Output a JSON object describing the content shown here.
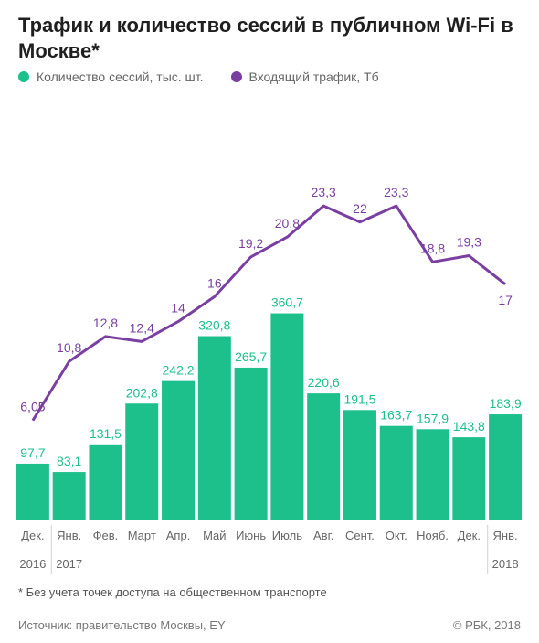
{
  "title": "Трафик и количество сессий в публичном Wi-Fi в Москве*",
  "footnote": "* Без учета точек доступа на общественном транспорте",
  "source": "Источник: правительство Москвы, EY",
  "copyright": "© РБК, 2018",
  "colors": {
    "sessions": "#1dbf8a",
    "traffic": "#7a3fa0"
  },
  "chart_data": {
    "type": "bar",
    "title": "Трафик и количество сессий в публичном Wi-Fi в Москве*",
    "categories": [
      "Дек.",
      "Янв.",
      "Фев.",
      "Март",
      "Апр.",
      "Май",
      "Июнь",
      "Июль",
      "Авг.",
      "Сент.",
      "Окт.",
      "Нояб.",
      "Дек.",
      "Янв."
    ],
    "year_labels": [
      {
        "index": 0,
        "label": "2016"
      },
      {
        "index": 1,
        "label": "2017"
      },
      {
        "index": 13,
        "label": "2018"
      }
    ],
    "series": [
      {
        "name": "Количество сессий, тыс. шт.",
        "type": "bar",
        "values": [
          97.7,
          83.1,
          131.5,
          202.8,
          242.2,
          320.8,
          265.7,
          360.7,
          220.6,
          191.5,
          163.7,
          157.9,
          143.8,
          183.9
        ],
        "labels": [
          "97,7",
          "83,1",
          "131,5",
          "202,8",
          "242,2",
          "320,8",
          "265,7",
          "360,7",
          "220,6",
          "191,5",
          "163,7",
          "157,9",
          "143,8",
          "183,9"
        ]
      },
      {
        "name": "Входящий трафик, Тб",
        "type": "line",
        "values": [
          6.05,
          10.8,
          12.8,
          12.4,
          14,
          16,
          19.2,
          20.8,
          23.3,
          22,
          23.3,
          18.8,
          19.3,
          17
        ],
        "labels": [
          "6,05",
          "10,8",
          "12,8",
          "12,4",
          "14",
          "16",
          "19,2",
          "20,8",
          "23,3",
          "22",
          "23,3",
          "18,8",
          "19,3",
          "17"
        ]
      }
    ]
  }
}
